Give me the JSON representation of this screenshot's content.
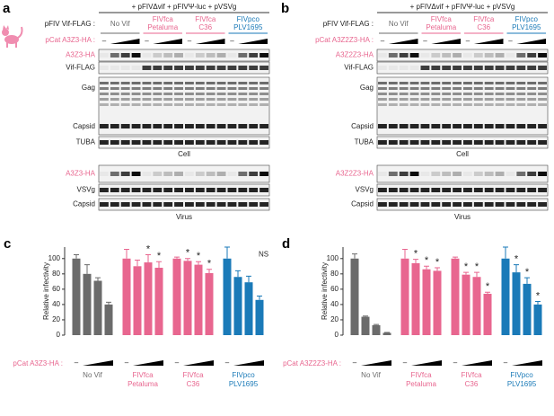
{
  "panels": [
    {
      "letter": "a",
      "header": "+ pFIVΔvif + pFIVΨ-luc + pVSVg",
      "vif_label": "pFIV Vif-FLAG :",
      "groups": [
        [
          "No Vif"
        ],
        [
          "FIVfca",
          "Petaluma"
        ],
        [
          "FIVfca",
          "C36"
        ],
        [
          "FIVpco",
          "PLV1695"
        ]
      ],
      "group_colors": [
        "#6b6b6b",
        "#e8668f",
        "#e8668f",
        "#1a7ab8"
      ],
      "treatment_label": "pCat A3Z3-HA :",
      "control_label": "–",
      "cell_rows": [
        "A3Z3-HA",
        "Vif-FLAG",
        "Gag",
        "Capsid",
        "TUBA"
      ],
      "cell_caption": "Cell",
      "virus_rows": [
        "A3Z3-HA",
        "VSVg",
        "Capsid"
      ],
      "virus_caption": "Virus"
    },
    {
      "letter": "b",
      "header": "+ pFIVΔvif + pFIVΨ-luc + pVSVg",
      "vif_label": "pFIV Vif-FLAG :",
      "groups": [
        [
          "No Vif"
        ],
        [
          "FIVfca",
          "Petaluma"
        ],
        [
          "FIVfca",
          "C36"
        ],
        [
          "FIVpco",
          "PLV1695"
        ]
      ],
      "group_colors": [
        "#6b6b6b",
        "#e8668f",
        "#e8668f",
        "#1a7ab8"
      ],
      "treatment_label": "pCat A3Z2Z3-HA :",
      "control_label": "–",
      "cell_rows": [
        "A3Z2Z3-HA",
        "Vif-FLAG",
        "Gag",
        "Capsid",
        "TUBA"
      ],
      "cell_caption": "Cell",
      "virus_rows": [
        "A3Z2Z3-HA",
        "VSVg",
        "Capsid"
      ],
      "virus_caption": "Virus"
    }
  ],
  "chart_data": [
    {
      "type": "bar",
      "letter": "c",
      "ylabel": "Relative infectivity",
      "treatment_label": "pCat A3Z3-HA :",
      "control_label": "–",
      "ylim": [
        0,
        115
      ],
      "yticks": [
        0,
        20,
        40,
        60,
        80,
        100
      ],
      "significance_marker": "*",
      "series": [
        {
          "name": [
            "No Vif"
          ],
          "color": "#6b6b6b",
          "values": [
            100,
            80,
            71,
            40
          ],
          "errors": [
            5,
            12,
            4,
            3
          ],
          "significant": [
            false,
            false,
            false,
            false
          ]
        },
        {
          "name": [
            "FIVfca",
            "Petaluma"
          ],
          "color": "#e8668f",
          "values": [
            100,
            90,
            95,
            88
          ],
          "errors": [
            12,
            8,
            10,
            8
          ],
          "significant": [
            false,
            false,
            true,
            true
          ]
        },
        {
          "name": [
            "FIVfca",
            "C36"
          ],
          "color": "#e8668f",
          "values": [
            100,
            97,
            92,
            81
          ],
          "errors": [
            2,
            3,
            4,
            5
          ],
          "significant": [
            false,
            true,
            true,
            true
          ]
        },
        {
          "name": [
            "FIVpco",
            "PLV1695"
          ],
          "color": "#1a7ab8",
          "values": [
            100,
            76,
            69,
            46
          ],
          "errors": [
            15,
            8,
            8,
            5
          ],
          "significant": [
            false,
            false,
            false,
            false
          ],
          "annotation": "NS"
        }
      ]
    },
    {
      "type": "bar",
      "letter": "d",
      "ylabel": "Relative infectivity",
      "treatment_label": "pCat A3Z2Z3-HA :",
      "control_label": "–",
      "ylim": [
        0,
        115
      ],
      "yticks": [
        0,
        20,
        40,
        60,
        80,
        100
      ],
      "significance_marker": "*",
      "series": [
        {
          "name": [
            "No Vif"
          ],
          "color": "#6b6b6b",
          "values": [
            100,
            24,
            13,
            3
          ],
          "errors": [
            6,
            1,
            1,
            0.5
          ],
          "significant": [
            false,
            false,
            false,
            false
          ]
        },
        {
          "name": [
            "FIVfca",
            "Petaluma"
          ],
          "color": "#e8668f",
          "values": [
            100,
            94,
            86,
            84
          ],
          "errors": [
            12,
            5,
            4,
            4
          ],
          "significant": [
            false,
            true,
            true,
            true
          ]
        },
        {
          "name": [
            "FIVfca",
            "C36"
          ],
          "color": "#e8668f",
          "values": [
            100,
            79,
            76,
            54
          ],
          "errors": [
            2,
            3,
            6,
            2
          ],
          "significant": [
            false,
            true,
            true,
            true
          ]
        },
        {
          "name": [
            "FIVpco",
            "PLV1695"
          ],
          "color": "#1a7ab8",
          "values": [
            100,
            82,
            67,
            40
          ],
          "errors": [
            15,
            10,
            8,
            4
          ],
          "significant": [
            false,
            true,
            true,
            true
          ]
        }
      ]
    }
  ]
}
